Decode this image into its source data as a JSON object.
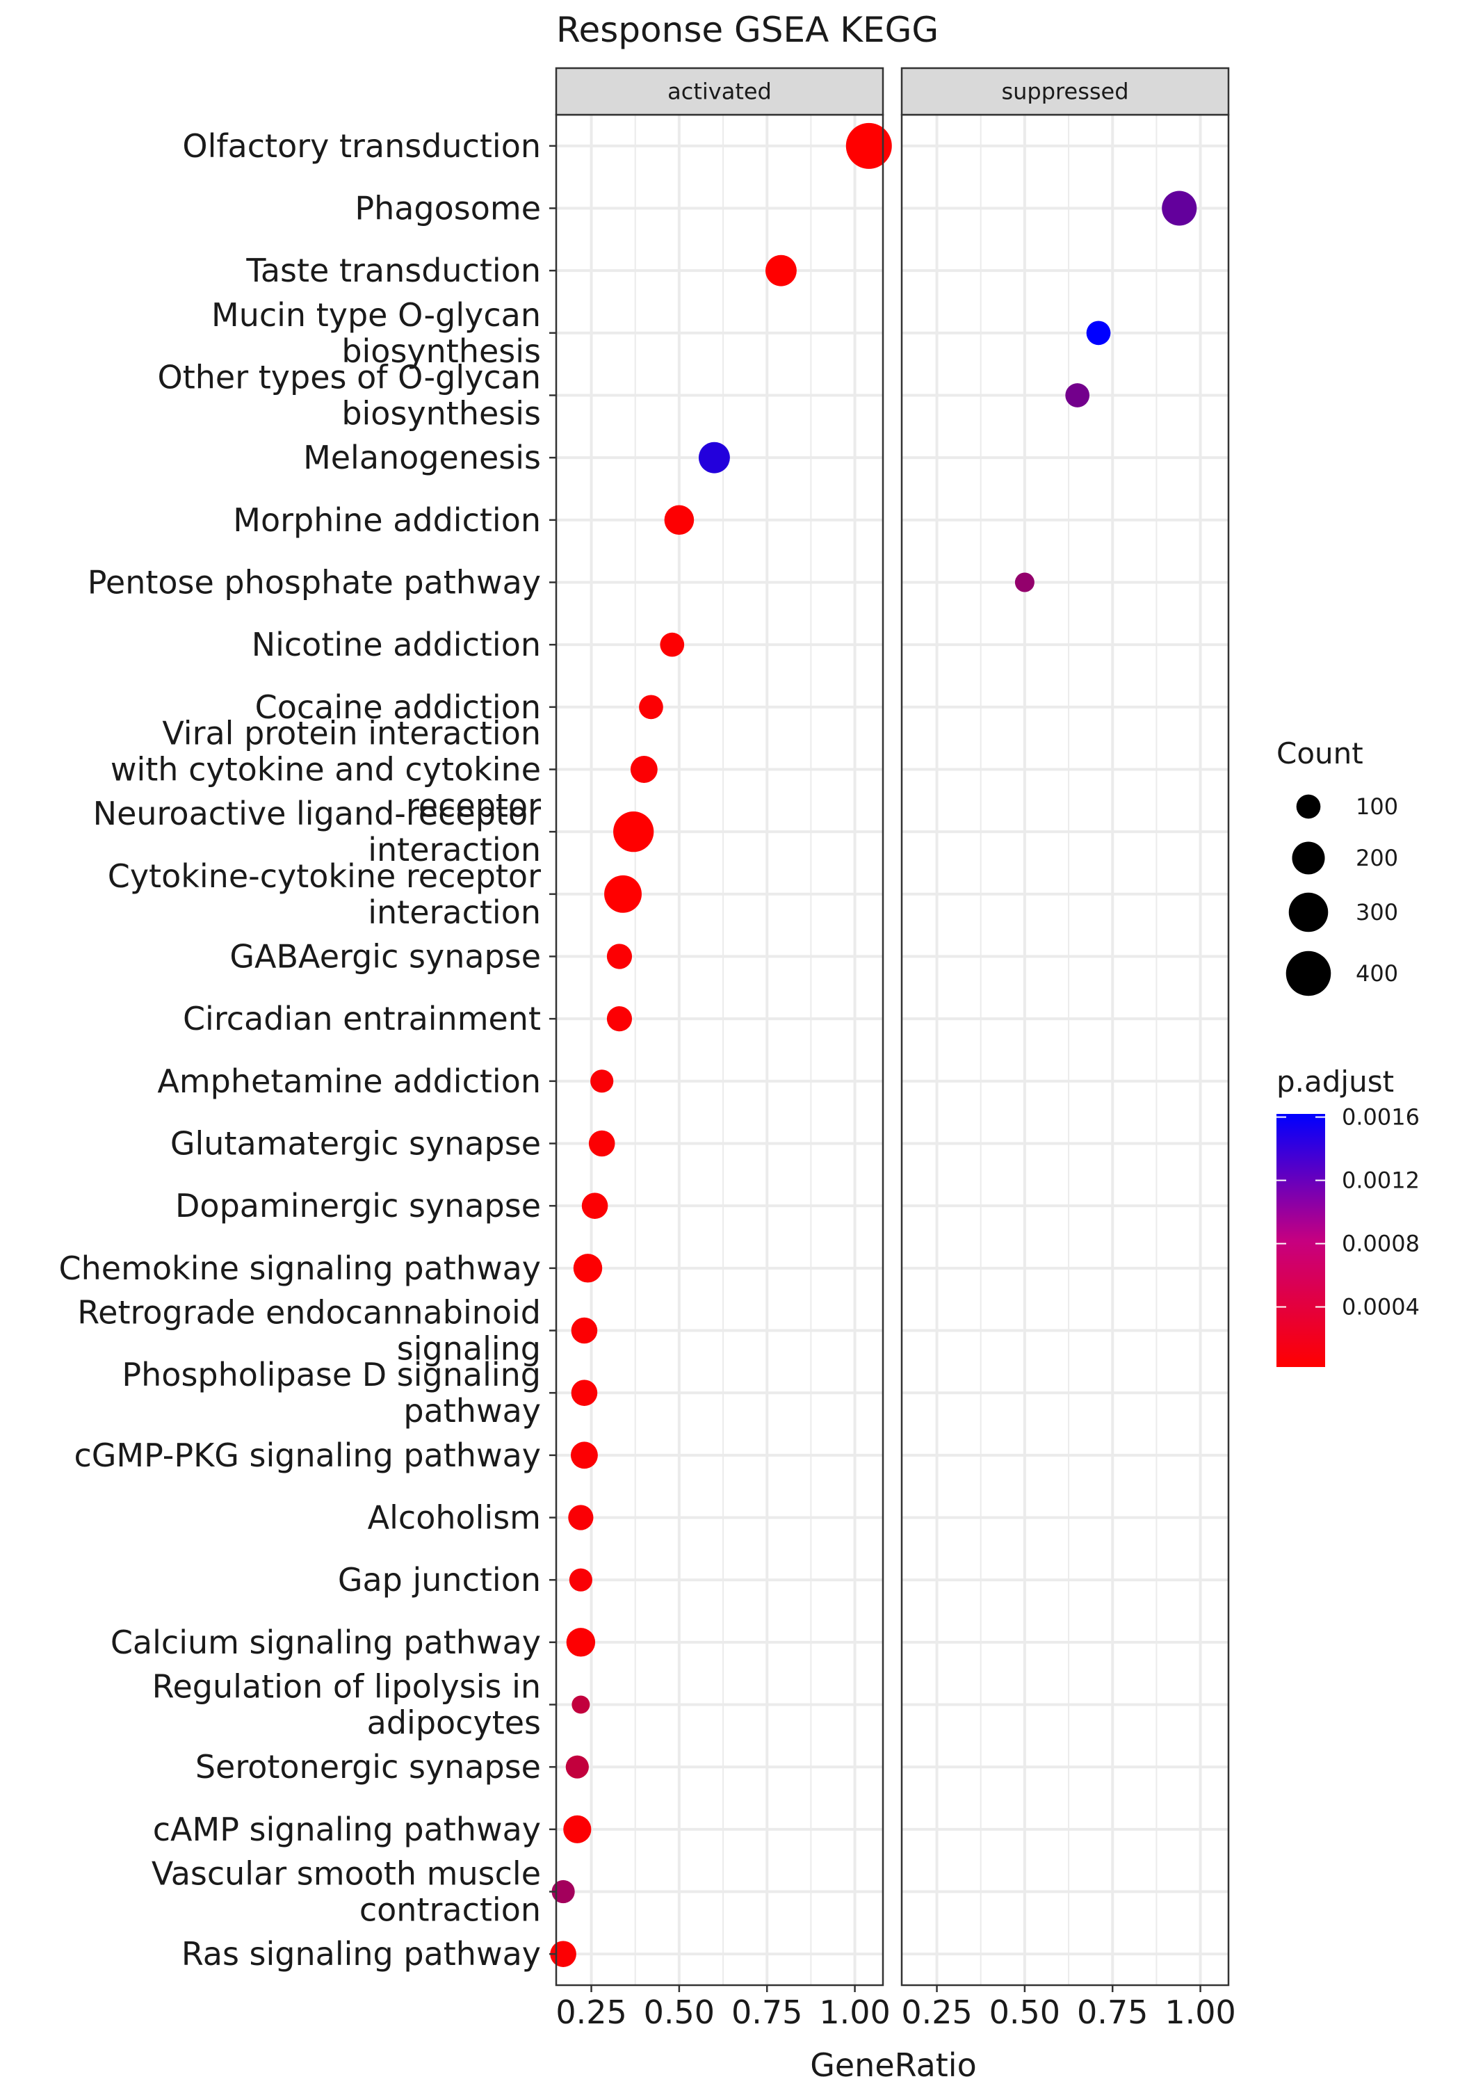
{
  "chart_data": {
    "type": "scatter",
    "title": "Response GSEA KEGG",
    "xlabel": "GeneRatio",
    "ylabel": "",
    "xlim": [
      0.15,
      1.08
    ],
    "x_ticks": [
      0.25,
      0.5,
      0.75,
      1.0
    ],
    "x_tick_labels": [
      "0.25",
      "0.50",
      "0.75",
      "1.00"
    ],
    "grid": true,
    "legend_position": "right",
    "facets": [
      "activated",
      "suppressed"
    ],
    "categories": [
      "Olfactory transduction",
      "Phagosome",
      "Taste transduction",
      "Mucin type O-glycan biosynthesis",
      "Other types of O-glycan biosynthesis",
      "Melanogenesis",
      "Morphine addiction",
      "Pentose phosphate pathway",
      "Nicotine addiction",
      "Cocaine addiction",
      "Viral protein interaction with cytokine and cytokine receptor",
      "Neuroactive ligand-receptor interaction",
      "Cytokine-cytokine receptor interaction",
      "GABAergic synapse",
      "Circadian entrainment",
      "Amphetamine addiction",
      "Glutamatergic synapse",
      "Dopaminergic synapse",
      "Chemokine signaling pathway",
      "Retrograde endocannabinoid signaling",
      "Phospholipase D signaling pathway",
      "cGMP-PKG signaling pathway",
      "Alcoholism",
      "Gap junction",
      "Calcium signaling pathway",
      "Regulation of lipolysis in adipocytes",
      "Serotonergic synapse",
      "cAMP signaling pathway",
      "Vascular smooth muscle contraction",
      "Ras signaling pathway"
    ],
    "category_lines": [
      [
        "Olfactory transduction"
      ],
      [
        "Phagosome"
      ],
      [
        "Taste transduction"
      ],
      [
        "Mucin type O-glycan",
        "biosynthesis"
      ],
      [
        "Other types of O-glycan",
        "biosynthesis"
      ],
      [
        "Melanogenesis"
      ],
      [
        "Morphine addiction"
      ],
      [
        "Pentose phosphate pathway"
      ],
      [
        "Nicotine addiction"
      ],
      [
        "Cocaine addiction"
      ],
      [
        "Viral protein interaction",
        "with cytokine and cytokine",
        "receptor"
      ],
      [
        "Neuroactive ligand-receptor",
        "interaction"
      ],
      [
        "Cytokine-cytokine receptor",
        "interaction"
      ],
      [
        "GABAergic synapse"
      ],
      [
        "Circadian entrainment"
      ],
      [
        "Amphetamine addiction"
      ],
      [
        "Glutamatergic synapse"
      ],
      [
        "Dopaminergic synapse"
      ],
      [
        "Chemokine signaling pathway"
      ],
      [
        "Retrograde endocannabinoid",
        "signaling"
      ],
      [
        "Phospholipase D signaling",
        "pathway"
      ],
      [
        "cGMP-PKG signaling pathway"
      ],
      [
        "Alcoholism"
      ],
      [
        "Gap junction"
      ],
      [
        "Calcium signaling pathway"
      ],
      [
        "Regulation of lipolysis in",
        "adipocytes"
      ],
      [
        "Serotonergic synapse"
      ],
      [
        "cAMP signaling pathway"
      ],
      [
        "Vascular smooth muscle",
        "contraction"
      ],
      [
        "Ras signaling pathway"
      ]
    ],
    "points": [
      {
        "category": "Olfactory transduction",
        "facet": "activated",
        "gene_ratio": 1.04,
        "count": 420,
        "p_adjust": 2e-05
      },
      {
        "category": "Phagosome",
        "facet": "suppressed",
        "gene_ratio": 0.94,
        "count": 230,
        "p_adjust": 0.001
      },
      {
        "category": "Taste transduction",
        "facet": "activated",
        "gene_ratio": 0.79,
        "count": 180,
        "p_adjust": 2e-05
      },
      {
        "category": "Mucin type O-glycan biosynthesis",
        "facet": "suppressed",
        "gene_ratio": 0.71,
        "count": 100,
        "p_adjust": 0.00162
      },
      {
        "category": "Other types of O-glycan biosynthesis",
        "facet": "suppressed",
        "gene_ratio": 0.65,
        "count": 100,
        "p_adjust": 0.0009
      },
      {
        "category": "Melanogenesis",
        "facet": "activated",
        "gene_ratio": 0.6,
        "count": 180,
        "p_adjust": 0.0014
      },
      {
        "category": "Morphine addiction",
        "facet": "activated",
        "gene_ratio": 0.5,
        "count": 160,
        "p_adjust": 3e-05
      },
      {
        "category": "Pentose phosphate pathway",
        "facet": "suppressed",
        "gene_ratio": 0.5,
        "count": 60,
        "p_adjust": 0.0007
      },
      {
        "category": "Nicotine addiction",
        "facet": "activated",
        "gene_ratio": 0.48,
        "count": 100,
        "p_adjust": 3e-05
      },
      {
        "category": "Cocaine addiction",
        "facet": "activated",
        "gene_ratio": 0.42,
        "count": 100,
        "p_adjust": 4e-05
      },
      {
        "category": "Viral protein interaction with cytokine and cytokine receptor",
        "facet": "activated",
        "gene_ratio": 0.4,
        "count": 130,
        "p_adjust": 4e-05
      },
      {
        "category": "Neuroactive ligand-receptor interaction",
        "facet": "activated",
        "gene_ratio": 0.37,
        "count": 320,
        "p_adjust": 2e-05
      },
      {
        "category": "Cytokine-cytokine receptor interaction",
        "facet": "activated",
        "gene_ratio": 0.34,
        "count": 270,
        "p_adjust": 2e-05
      },
      {
        "category": "GABAergic synapse",
        "facet": "activated",
        "gene_ratio": 0.33,
        "count": 110,
        "p_adjust": 4e-05
      },
      {
        "category": "Circadian entrainment",
        "facet": "activated",
        "gene_ratio": 0.33,
        "count": 110,
        "p_adjust": 4e-05
      },
      {
        "category": "Amphetamine addiction",
        "facet": "activated",
        "gene_ratio": 0.28,
        "count": 90,
        "p_adjust": 5e-05
      },
      {
        "category": "Glutamatergic synapse",
        "facet": "activated",
        "gene_ratio": 0.28,
        "count": 120,
        "p_adjust": 4e-05
      },
      {
        "category": "Dopaminergic synapse",
        "facet": "activated",
        "gene_ratio": 0.26,
        "count": 120,
        "p_adjust": 4e-05
      },
      {
        "category": "Chemokine signaling pathway",
        "facet": "activated",
        "gene_ratio": 0.24,
        "count": 150,
        "p_adjust": 3e-05
      },
      {
        "category": "Retrograde endocannabinoid signaling",
        "facet": "activated",
        "gene_ratio": 0.23,
        "count": 120,
        "p_adjust": 4e-05
      },
      {
        "category": "Phospholipase D signaling pathway",
        "facet": "activated",
        "gene_ratio": 0.23,
        "count": 120,
        "p_adjust": 4e-05
      },
      {
        "category": "cGMP-PKG signaling pathway",
        "facet": "activated",
        "gene_ratio": 0.23,
        "count": 130,
        "p_adjust": 4e-05
      },
      {
        "category": "Alcoholism",
        "facet": "activated",
        "gene_ratio": 0.22,
        "count": 110,
        "p_adjust": 5e-05
      },
      {
        "category": "Gap junction",
        "facet": "activated",
        "gene_ratio": 0.22,
        "count": 90,
        "p_adjust": 5e-05
      },
      {
        "category": "Calcium signaling pathway",
        "facet": "activated",
        "gene_ratio": 0.22,
        "count": 150,
        "p_adjust": 3e-05
      },
      {
        "category": "Regulation of lipolysis in adipocytes",
        "facet": "activated",
        "gene_ratio": 0.22,
        "count": 50,
        "p_adjust": 0.0004
      },
      {
        "category": "Serotonergic synapse",
        "facet": "activated",
        "gene_ratio": 0.21,
        "count": 90,
        "p_adjust": 0.0004
      },
      {
        "category": "cAMP signaling pathway",
        "facet": "activated",
        "gene_ratio": 0.21,
        "count": 140,
        "p_adjust": 4e-05
      },
      {
        "category": "Vascular smooth muscle contraction",
        "facet": "activated",
        "gene_ratio": 0.17,
        "count": 90,
        "p_adjust": 0.0006
      },
      {
        "category": "Ras signaling pathway",
        "facet": "activated",
        "gene_ratio": 0.17,
        "count": 120,
        "p_adjust": 4e-05
      }
    ],
    "size_legend": {
      "title": "Count",
      "breaks": [
        100,
        200,
        300,
        400
      ],
      "labels": [
        "100",
        "200",
        "300",
        "400"
      ]
    },
    "color_legend": {
      "title": "p.adjust",
      "breaks": [
        0.0004,
        0.0008,
        0.0012,
        0.0016
      ],
      "labels": [
        "0.0004",
        "0.0008",
        "0.0012",
        "0.0016"
      ],
      "range": [
        2e-05,
        0.00162
      ],
      "low_color": "#ff0000",
      "high_color": "#0000ff"
    },
    "colors": {
      "panel_border": "#333333",
      "grid": "#ebebeb",
      "strip_fill": "#d9d9d9",
      "text": "#1a1a1a"
    }
  }
}
